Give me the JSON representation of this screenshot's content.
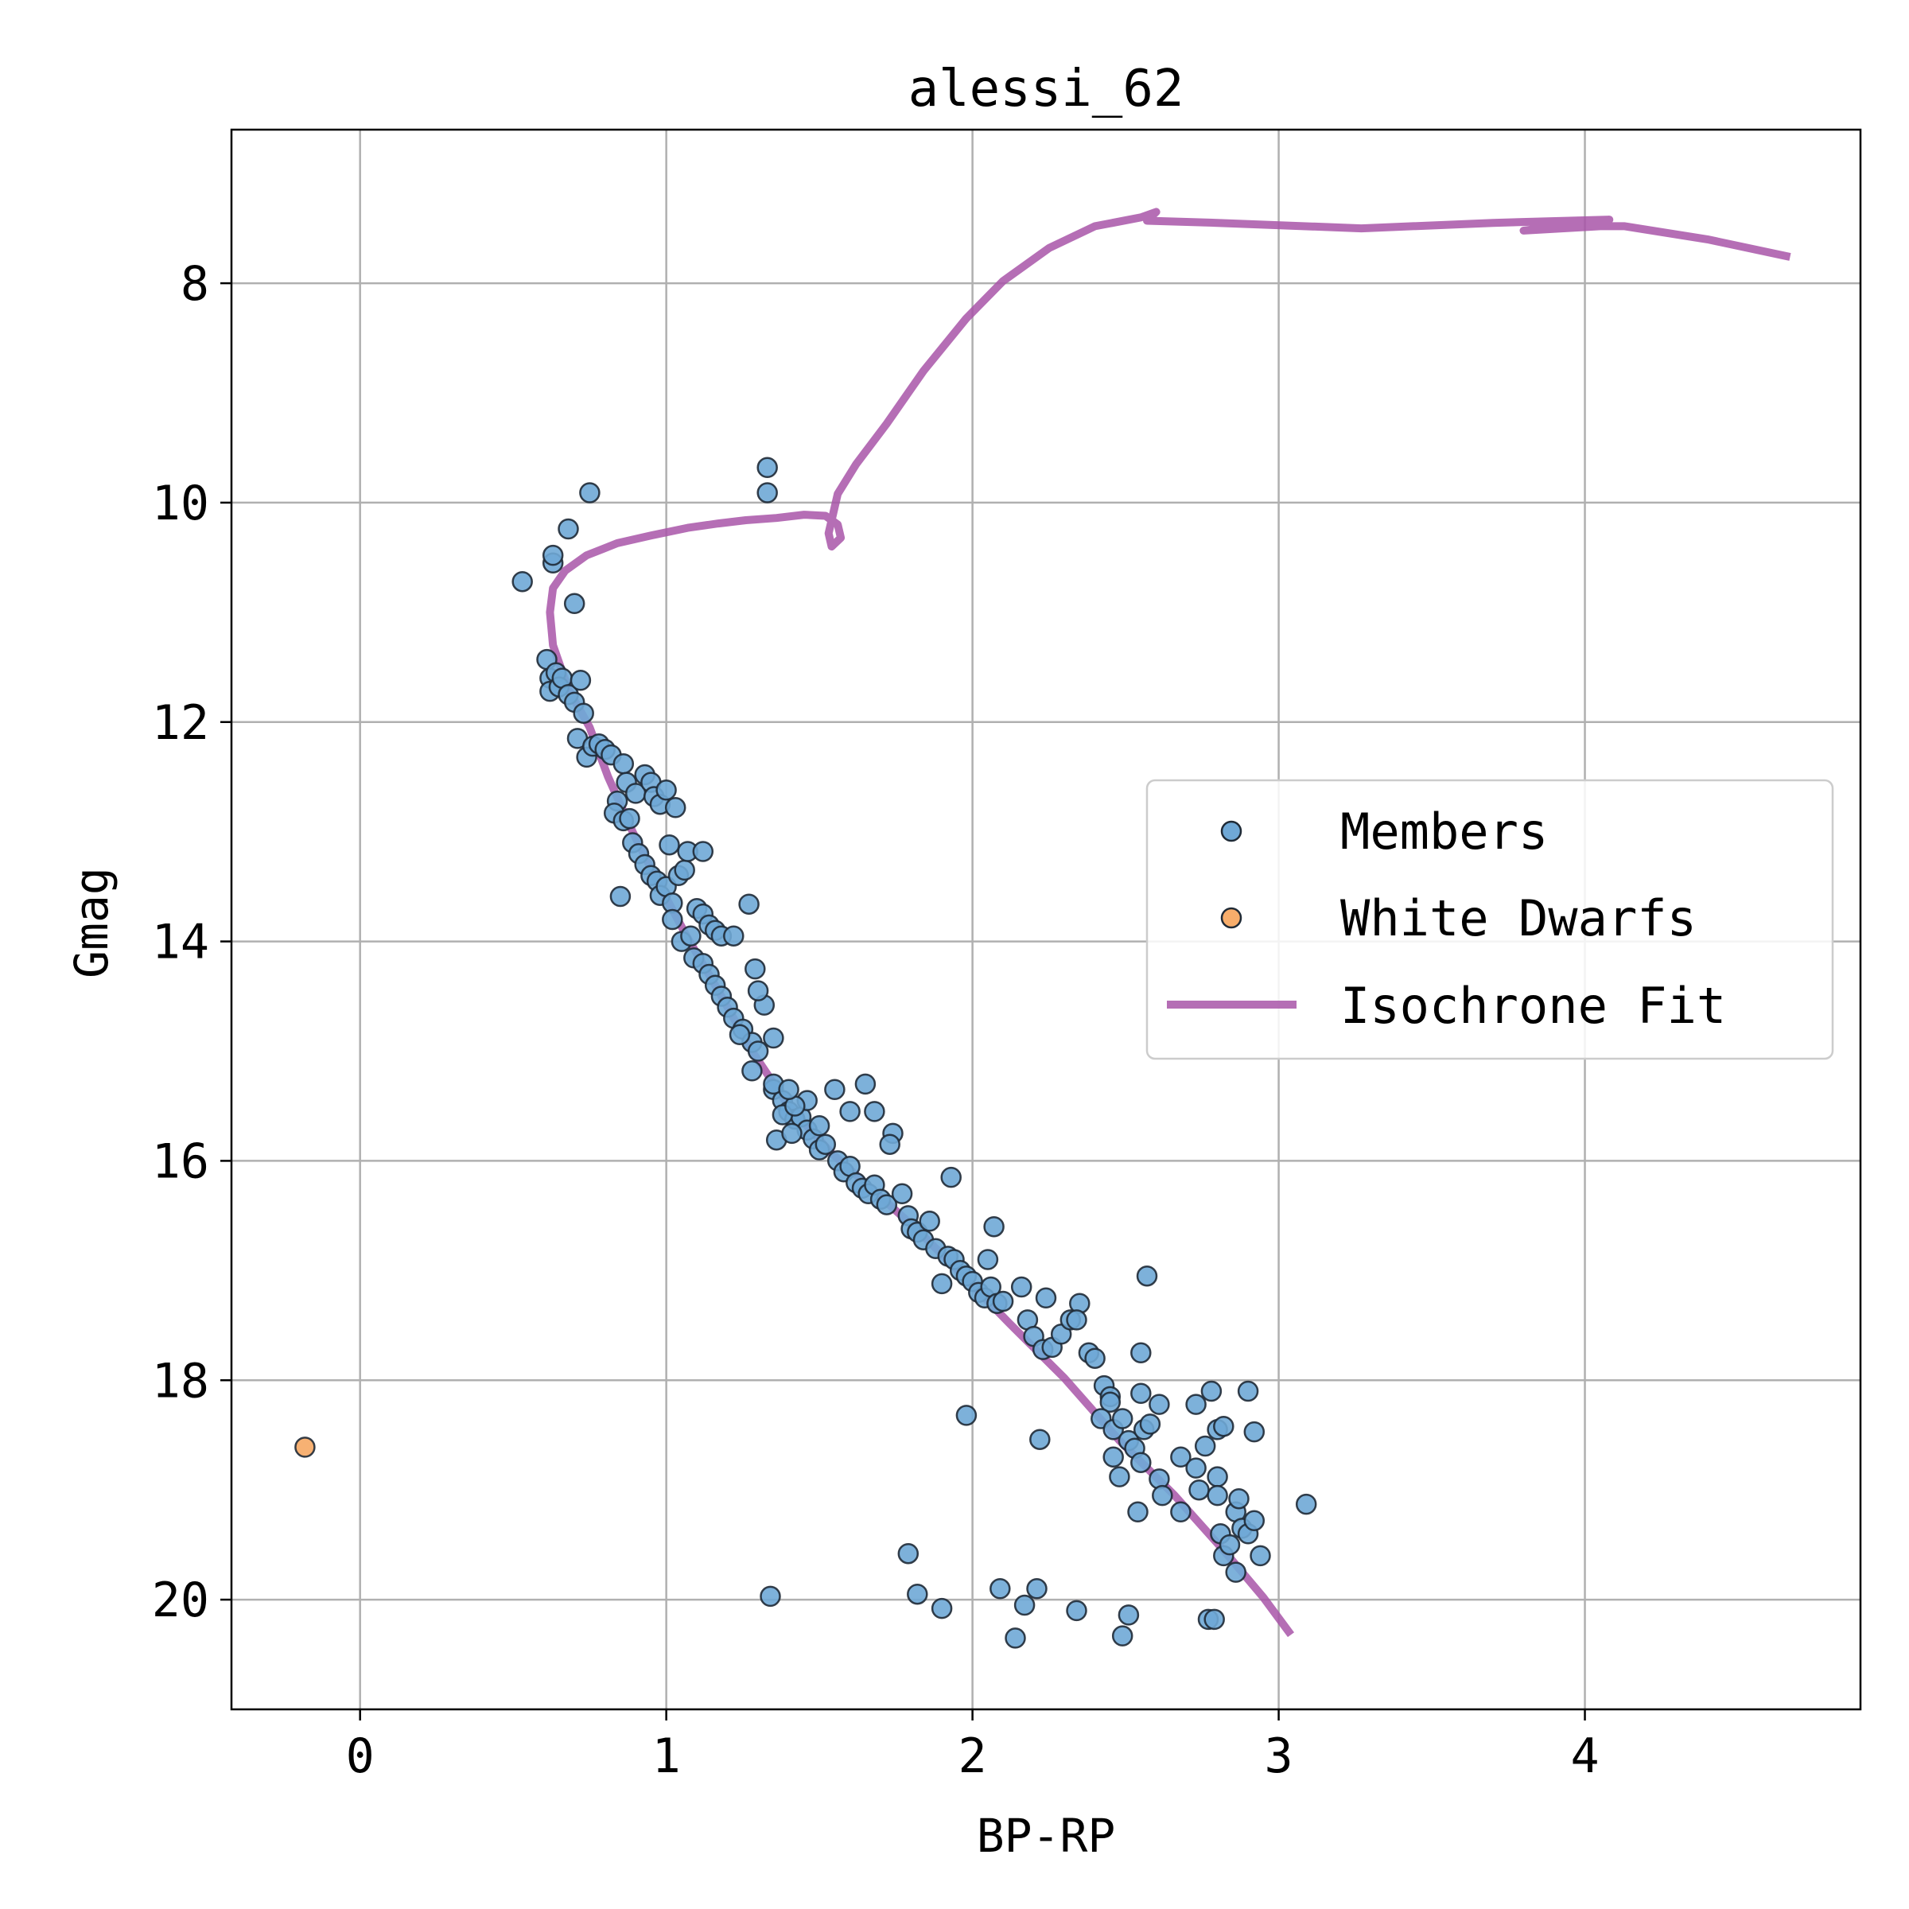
{
  "chart_data": {
    "type": "scatter",
    "title": "alessi_62",
    "xlabel": "BP-RP",
    "ylabel": "Gmag",
    "xlim": [
      -0.42,
      4.9
    ],
    "ylim": [
      21.0,
      6.6
    ],
    "y_inverted": true,
    "grid": true,
    "xticks": [
      "0",
      "1",
      "2",
      "3",
      "4"
    ],
    "yticks": [
      "8",
      "10",
      "12",
      "14",
      "16",
      "18",
      "20"
    ],
    "xtick_values": [
      0,
      1,
      2,
      3,
      4
    ],
    "ytick_values": [
      8,
      10,
      12,
      14,
      16,
      18,
      20
    ],
    "legend_position": "center-right",
    "legend": [
      "Members",
      "White Dwarfs",
      "Isochrone Fit"
    ],
    "colors": {
      "members": "#6fa8d6",
      "white_dwarfs": "#f7ad6b",
      "isochrone": "#a855a8",
      "edge": "#1f2a36",
      "grid": "#b0b0b0"
    },
    "series": [
      {
        "name": "Members",
        "kind": "scatter",
        "points": [
          [
            0.53,
            10.72
          ],
          [
            0.63,
            10.55
          ],
          [
            0.63,
            10.48
          ],
          [
            0.68,
            10.24
          ],
          [
            0.75,
            9.91
          ],
          [
            0.7,
            10.92
          ],
          [
            1.33,
            9.68
          ],
          [
            1.33,
            9.91
          ],
          [
            0.61,
            11.43
          ],
          [
            0.62,
            11.6
          ],
          [
            0.62,
            11.72
          ],
          [
            0.64,
            11.55
          ],
          [
            0.65,
            11.68
          ],
          [
            0.66,
            11.6
          ],
          [
            0.68,
            11.75
          ],
          [
            0.7,
            11.82
          ],
          [
            0.72,
            11.62
          ],
          [
            0.73,
            11.92
          ],
          [
            0.71,
            12.15
          ],
          [
            0.74,
            12.32
          ],
          [
            0.76,
            12.22
          ],
          [
            0.78,
            12.2
          ],
          [
            0.8,
            12.25
          ],
          [
            0.82,
            12.3
          ],
          [
            0.86,
            12.38
          ],
          [
            0.87,
            12.55
          ],
          [
            0.9,
            12.65
          ],
          [
            0.93,
            12.48
          ],
          [
            0.95,
            12.55
          ],
          [
            0.96,
            12.68
          ],
          [
            0.98,
            12.75
          ],
          [
            1.0,
            12.62
          ],
          [
            1.03,
            12.78
          ],
          [
            0.84,
            12.72
          ],
          [
            0.83,
            12.83
          ],
          [
            0.86,
            12.9
          ],
          [
            0.88,
            12.88
          ],
          [
            0.89,
            13.1
          ],
          [
            0.91,
            13.2
          ],
          [
            0.93,
            13.3
          ],
          [
            0.95,
            13.4
          ],
          [
            0.97,
            13.45
          ],
          [
            0.98,
            13.58
          ],
          [
            1.0,
            13.5
          ],
          [
            1.02,
            13.65
          ],
          [
            1.04,
            13.4
          ],
          [
            1.06,
            13.35
          ],
          [
            1.07,
            13.18
          ],
          [
            1.12,
            13.18
          ],
          [
            1.01,
            13.12
          ],
          [
            0.85,
            13.59
          ],
          [
            1.02,
            13.8
          ],
          [
            1.05,
            14.0
          ],
          [
            1.08,
            13.95
          ],
          [
            1.1,
            13.7
          ],
          [
            1.12,
            13.75
          ],
          [
            1.14,
            13.85
          ],
          [
            1.16,
            13.9
          ],
          [
            1.18,
            13.95
          ],
          [
            1.22,
            13.95
          ],
          [
            1.27,
            13.66
          ],
          [
            1.09,
            14.15
          ],
          [
            1.12,
            14.2
          ],
          [
            1.14,
            14.3
          ],
          [
            1.16,
            14.4
          ],
          [
            1.18,
            14.5
          ],
          [
            1.2,
            14.6
          ],
          [
            1.22,
            14.7
          ],
          [
            1.25,
            14.8
          ],
          [
            1.28,
            14.92
          ],
          [
            1.3,
            15.0
          ],
          [
            1.32,
            14.58
          ],
          [
            1.3,
            14.45
          ],
          [
            1.29,
            14.25
          ],
          [
            1.24,
            14.85
          ],
          [
            1.28,
            15.18
          ],
          [
            1.35,
            15.35
          ],
          [
            1.38,
            15.45
          ],
          [
            1.4,
            15.55
          ],
          [
            1.42,
            15.62
          ],
          [
            1.44,
            15.6
          ],
          [
            1.46,
            15.72
          ],
          [
            1.48,
            15.8
          ],
          [
            1.5,
            15.9
          ],
          [
            1.52,
            15.85
          ],
          [
            1.55,
            15.35
          ],
          [
            1.35,
            14.88
          ],
          [
            1.36,
            15.81
          ],
          [
            1.38,
            15.58
          ],
          [
            1.56,
            16.0
          ],
          [
            1.58,
            16.1
          ],
          [
            1.6,
            16.05
          ],
          [
            1.62,
            16.2
          ],
          [
            1.64,
            16.25
          ],
          [
            1.66,
            16.3
          ],
          [
            1.68,
            16.22
          ],
          [
            1.7,
            16.35
          ],
          [
            1.72,
            16.4
          ],
          [
            1.65,
            15.3
          ],
          [
            1.68,
            15.55
          ],
          [
            1.74,
            15.75
          ],
          [
            1.77,
            16.3
          ],
          [
            1.79,
            16.5
          ],
          [
            1.8,
            16.62
          ],
          [
            1.82,
            16.65
          ],
          [
            1.84,
            16.72
          ],
          [
            1.86,
            16.55
          ],
          [
            1.88,
            16.8
          ],
          [
            1.9,
            17.12
          ],
          [
            1.92,
            16.87
          ],
          [
            1.94,
            16.9
          ],
          [
            1.96,
            17.0
          ],
          [
            1.98,
            17.05
          ],
          [
            2.0,
            17.1
          ],
          [
            2.02,
            17.2
          ],
          [
            2.04,
            17.25
          ],
          [
            2.06,
            17.15
          ],
          [
            2.08,
            17.3
          ],
          [
            2.1,
            17.28
          ],
          [
            2.05,
            16.9
          ],
          [
            2.07,
            16.6
          ],
          [
            1.93,
            16.15
          ],
          [
            2.16,
            17.15
          ],
          [
            2.18,
            17.45
          ],
          [
            2.2,
            17.6
          ],
          [
            2.23,
            17.72
          ],
          [
            2.26,
            17.7
          ],
          [
            2.24,
            17.25
          ],
          [
            2.29,
            17.58
          ],
          [
            2.32,
            17.45
          ],
          [
            2.35,
            17.3
          ],
          [
            2.38,
            17.75
          ],
          [
            2.4,
            17.8
          ],
          [
            2.43,
            18.05
          ],
          [
            2.45,
            18.15
          ],
          [
            2.45,
            18.2
          ],
          [
            2.42,
            18.35
          ],
          [
            2.46,
            18.45
          ],
          [
            2.49,
            18.35
          ],
          [
            2.51,
            18.55
          ],
          [
            2.53,
            18.62
          ],
          [
            2.55,
            18.75
          ],
          [
            2.55,
            18.12
          ],
          [
            2.56,
            18.45
          ],
          [
            2.55,
            17.75
          ],
          [
            2.57,
            17.05
          ],
          [
            2.46,
            18.7
          ],
          [
            2.48,
            18.88
          ],
          [
            2.54,
            19.2
          ],
          [
            2.58,
            18.4
          ],
          [
            2.61,
            18.22
          ],
          [
            2.61,
            18.9
          ],
          [
            2.62,
            19.05
          ],
          [
            2.68,
            19.2
          ],
          [
            2.68,
            18.7
          ],
          [
            2.73,
            18.8
          ],
          [
            2.73,
            18.22
          ],
          [
            2.74,
            19.0
          ],
          [
            2.76,
            18.6
          ],
          [
            2.78,
            18.1
          ],
          [
            2.8,
            18.45
          ],
          [
            2.8,
            18.88
          ],
          [
            2.81,
            19.4
          ],
          [
            2.82,
            19.6
          ],
          [
            2.84,
            19.5
          ],
          [
            2.86,
            19.2
          ],
          [
            2.87,
            19.08
          ],
          [
            2.88,
            19.35
          ],
          [
            2.9,
            19.4
          ],
          [
            2.9,
            18.1
          ],
          [
            2.92,
            18.47
          ],
          [
            2.94,
            19.6
          ],
          [
            2.92,
            19.28
          ],
          [
            2.86,
            19.75
          ],
          [
            2.8,
            19.05
          ],
          [
            2.82,
            18.42
          ],
          [
            3.09,
            19.13
          ],
          [
            1.34,
            19.97
          ],
          [
            1.79,
            19.58
          ],
          [
            1.82,
            19.95
          ],
          [
            1.9,
            20.08
          ],
          [
            1.98,
            18.32
          ],
          [
            2.09,
            19.9
          ],
          [
            2.14,
            20.35
          ],
          [
            2.17,
            20.05
          ],
          [
            2.21,
            19.9
          ],
          [
            2.22,
            18.54
          ],
          [
            2.34,
            20.1
          ],
          [
            2.49,
            20.33
          ],
          [
            2.51,
            20.14
          ],
          [
            2.77,
            20.18
          ],
          [
            2.79,
            20.18
          ],
          [
            2.34,
            17.45
          ],
          [
            1.73,
            15.85
          ],
          [
            1.6,
            15.55
          ],
          [
            1.46,
            15.45
          ],
          [
            1.35,
            15.3
          ],
          [
            1.42,
            15.5
          ],
          [
            1.5,
            15.68
          ],
          [
            1.41,
            15.75
          ],
          [
            1.4,
            15.35
          ]
        ]
      },
      {
        "name": "White Dwarfs",
        "kind": "scatter",
        "points": [
          [
            -0.18,
            18.61
          ]
        ]
      },
      {
        "name": "Isochrone Fit",
        "kind": "line",
        "points": [
          [
            3.04,
            20.32
          ],
          [
            2.95,
            19.98
          ],
          [
            2.82,
            19.55
          ],
          [
            2.66,
            19.05
          ],
          [
            2.48,
            18.55
          ],
          [
            2.3,
            17.98
          ],
          [
            2.12,
            17.48
          ],
          [
            1.96,
            17.02
          ],
          [
            1.82,
            16.63
          ],
          [
            1.68,
            16.28
          ],
          [
            1.54,
            15.93
          ],
          [
            1.4,
            15.5
          ],
          [
            1.28,
            15.0
          ],
          [
            1.17,
            14.45
          ],
          [
            1.07,
            13.97
          ],
          [
            0.98,
            13.5
          ],
          [
            0.89,
            13.0
          ],
          [
            0.81,
            12.5
          ],
          [
            0.75,
            12.05
          ],
          [
            0.68,
            11.7
          ],
          [
            0.63,
            11.3
          ],
          [
            0.62,
            11.0
          ],
          [
            0.63,
            10.78
          ],
          [
            0.67,
            10.62
          ],
          [
            0.74,
            10.48
          ],
          [
            0.84,
            10.37
          ],
          [
            0.95,
            10.3
          ],
          [
            1.07,
            10.23
          ],
          [
            1.17,
            10.19
          ],
          [
            1.26,
            10.16
          ],
          [
            1.36,
            10.14
          ],
          [
            1.45,
            10.11
          ],
          [
            1.52,
            10.12
          ],
          [
            1.56,
            10.2
          ],
          [
            1.57,
            10.32
          ],
          [
            1.54,
            10.4
          ],
          [
            1.53,
            10.28
          ],
          [
            1.56,
            9.92
          ],
          [
            1.62,
            9.65
          ],
          [
            1.72,
            9.28
          ],
          [
            1.84,
            8.8
          ],
          [
            1.98,
            8.32
          ],
          [
            2.1,
            7.98
          ],
          [
            2.25,
            7.68
          ],
          [
            2.4,
            7.48
          ],
          [
            2.55,
            7.4
          ],
          [
            2.6,
            7.35
          ],
          [
            2.57,
            7.43
          ],
          [
            2.8,
            7.45
          ],
          [
            3.27,
            7.5
          ],
          [
            3.7,
            7.45
          ],
          [
            4.08,
            7.42
          ],
          [
            3.8,
            7.52
          ],
          [
            4.05,
            7.48
          ],
          [
            4.13,
            7.48
          ],
          [
            4.4,
            7.6
          ],
          [
            4.67,
            7.76
          ]
        ]
      }
    ]
  }
}
